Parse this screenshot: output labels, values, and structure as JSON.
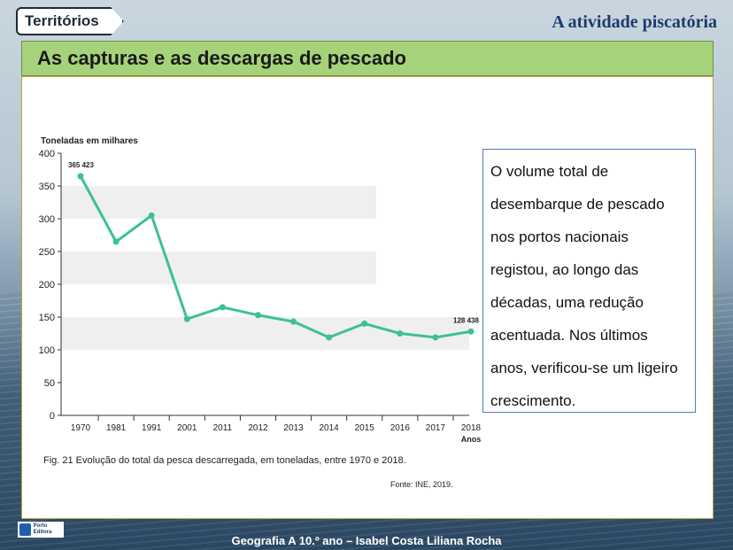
{
  "header": {
    "logo_text": "Territórios",
    "title": "A atividade piscatória"
  },
  "section": {
    "title": "As capturas e as descargas de pescado"
  },
  "chart_data": {
    "type": "line",
    "ylabel": "Toneladas em milhares",
    "xlabel": "Anos",
    "ylim": [
      0,
      400
    ],
    "yticks": [
      0,
      50,
      100,
      150,
      200,
      250,
      300,
      350,
      400
    ],
    "categories": [
      "1970",
      "1981",
      "1991",
      "2001",
      "2011",
      "2012",
      "2013",
      "2014",
      "2015",
      "2016",
      "2017",
      "2018"
    ],
    "values": [
      365,
      265,
      305,
      147,
      165,
      153,
      143,
      119,
      140,
      125,
      119,
      128
    ],
    "annotations": [
      {
        "category": "1970",
        "label": "365 423"
      },
      {
        "category": "2018",
        "label": "128 438"
      }
    ],
    "line_color": "#3cbf9a"
  },
  "caption": "Fig. 21 Evolução do total da pesca descarregada, em toneladas, entre 1970 e 2018.",
  "source": "Fonte: INE, 2019.",
  "textbox": {
    "text": "O volume total de desembarque de pescado nos portos nacionais registou, ao longo das décadas, uma redução acentuada. Nos últimos anos, verificou-se um ligeiro crescimento."
  },
  "footer": {
    "publisher": "Porto Editora",
    "text": "Geografia A 10.º ano – Isabel Costa  Liliana Rocha"
  }
}
